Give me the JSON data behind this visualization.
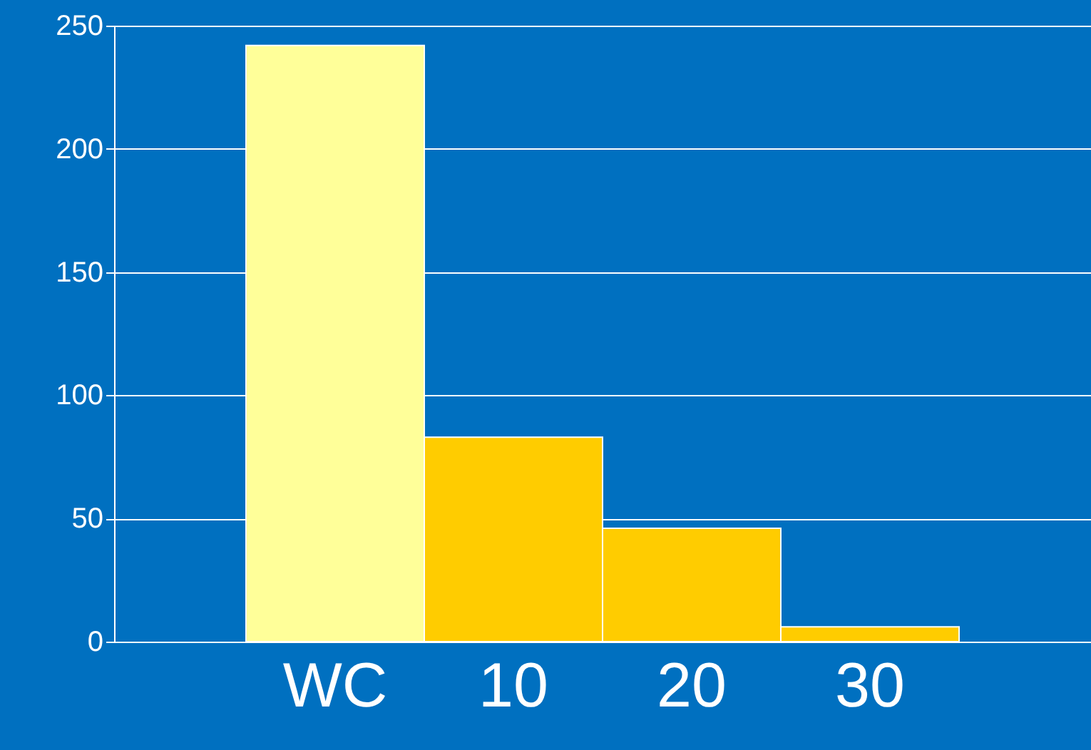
{
  "chart_data": {
    "type": "bar",
    "categories": [
      "WC",
      "10",
      "20",
      "30"
    ],
    "values": [
      242,
      83,
      46,
      6
    ],
    "colors": [
      "#ffff99",
      "#ffcc00",
      "#ffcc00",
      "#ffcc00"
    ],
    "ylim": [
      0,
      250
    ],
    "yticks": [
      0,
      50,
      100,
      150,
      200,
      250
    ],
    "grid": "y"
  }
}
